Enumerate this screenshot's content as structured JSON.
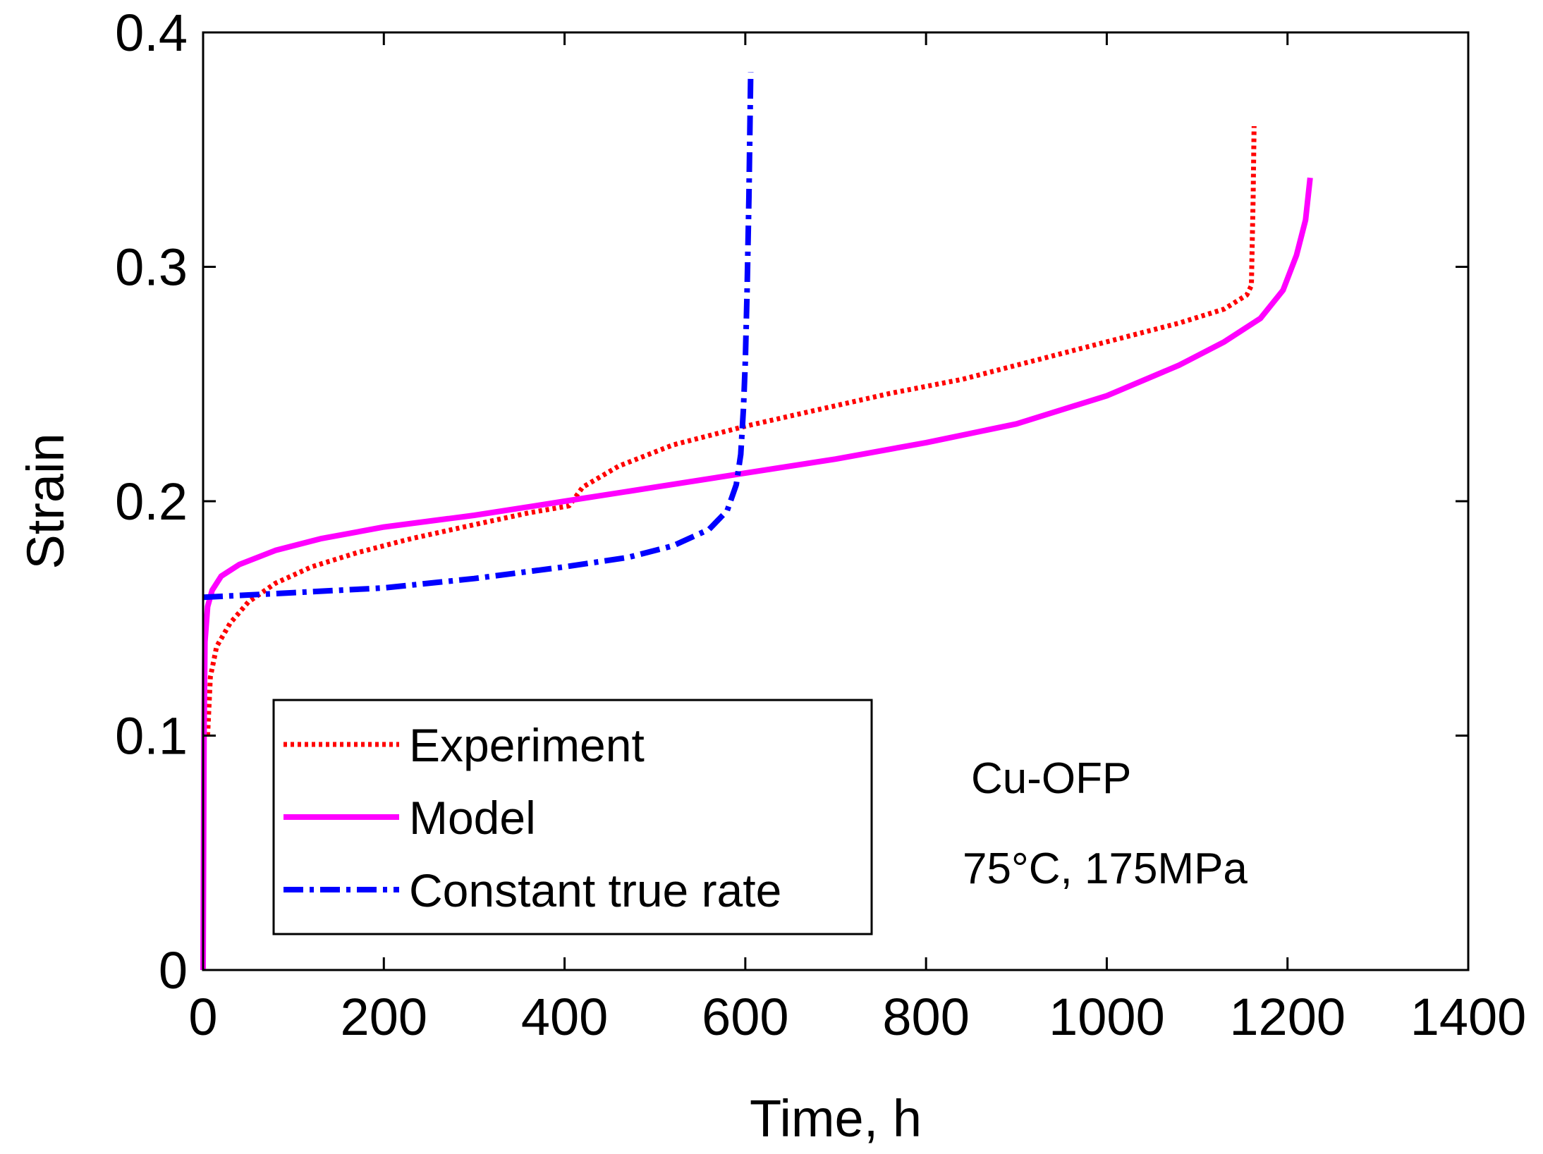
{
  "chart_data": {
    "type": "line",
    "title": "",
    "xlabel": "Time, h",
    "ylabel": "Strain",
    "xlim": [
      0,
      1400
    ],
    "ylim": [
      0,
      0.4
    ],
    "xticks": [
      0,
      200,
      400,
      600,
      800,
      1000,
      1200,
      1400
    ],
    "yticks": [
      0,
      0.1,
      0.2,
      0.3,
      0.4
    ],
    "xtick_labels": [
      "0",
      "200",
      "400",
      "600",
      "800",
      "1000",
      "1200",
      "1400"
    ],
    "ytick_labels": [
      "0",
      "0.1",
      "0.2",
      "0.3",
      "0.4"
    ],
    "grid": false,
    "legend_position": "bottom-left",
    "annotations": [
      "Cu-OFP",
      "75°C, 175MPa"
    ],
    "series": [
      {
        "name": "Experiment",
        "color": "#ff0000",
        "style": "dotted",
        "points": [
          [
            5,
            0.1
          ],
          [
            8,
            0.125
          ],
          [
            15,
            0.138
          ],
          [
            30,
            0.148
          ],
          [
            50,
            0.157
          ],
          [
            80,
            0.165
          ],
          [
            120,
            0.172
          ],
          [
            170,
            0.178
          ],
          [
            230,
            0.184
          ],
          [
            300,
            0.19
          ],
          [
            360,
            0.195
          ],
          [
            405,
            0.198
          ],
          [
            420,
            0.206
          ],
          [
            460,
            0.215
          ],
          [
            520,
            0.224
          ],
          [
            600,
            0.232
          ],
          [
            680,
            0.239
          ],
          [
            760,
            0.246
          ],
          [
            840,
            0.252
          ],
          [
            920,
            0.26
          ],
          [
            1000,
            0.268
          ],
          [
            1080,
            0.276
          ],
          [
            1130,
            0.282
          ],
          [
            1155,
            0.288
          ],
          [
            1160,
            0.292
          ],
          [
            1162,
            0.33
          ],
          [
            1163,
            0.36
          ]
        ]
      },
      {
        "name": "Model",
        "color": "#ff00ff",
        "style": "solid",
        "points": [
          [
            0,
            0
          ],
          [
            1,
            0.1
          ],
          [
            2,
            0.14
          ],
          [
            5,
            0.155
          ],
          [
            10,
            0.162
          ],
          [
            20,
            0.168
          ],
          [
            40,
            0.173
          ],
          [
            80,
            0.179
          ],
          [
            130,
            0.184
          ],
          [
            200,
            0.189
          ],
          [
            300,
            0.194
          ],
          [
            400,
            0.2
          ],
          [
            500,
            0.206
          ],
          [
            600,
            0.212
          ],
          [
            700,
            0.218
          ],
          [
            800,
            0.225
          ],
          [
            900,
            0.233
          ],
          [
            1000,
            0.245
          ],
          [
            1080,
            0.258
          ],
          [
            1130,
            0.268
          ],
          [
            1170,
            0.278
          ],
          [
            1195,
            0.29
          ],
          [
            1210,
            0.305
          ],
          [
            1220,
            0.32
          ],
          [
            1225,
            0.338
          ]
        ]
      },
      {
        "name": "Constant true rate",
        "color": "#0000ff",
        "style": "dashdot",
        "points": [
          [
            0,
            0.159
          ],
          [
            50,
            0.16
          ],
          [
            100,
            0.161
          ],
          [
            200,
            0.163
          ],
          [
            300,
            0.167
          ],
          [
            400,
            0.172
          ],
          [
            470,
            0.176
          ],
          [
            520,
            0.181
          ],
          [
            560,
            0.188
          ],
          [
            580,
            0.196
          ],
          [
            590,
            0.207
          ],
          [
            595,
            0.22
          ],
          [
            598,
            0.24
          ],
          [
            600,
            0.26
          ],
          [
            602,
            0.29
          ],
          [
            604,
            0.33
          ],
          [
            606,
            0.383
          ]
        ]
      }
    ]
  }
}
